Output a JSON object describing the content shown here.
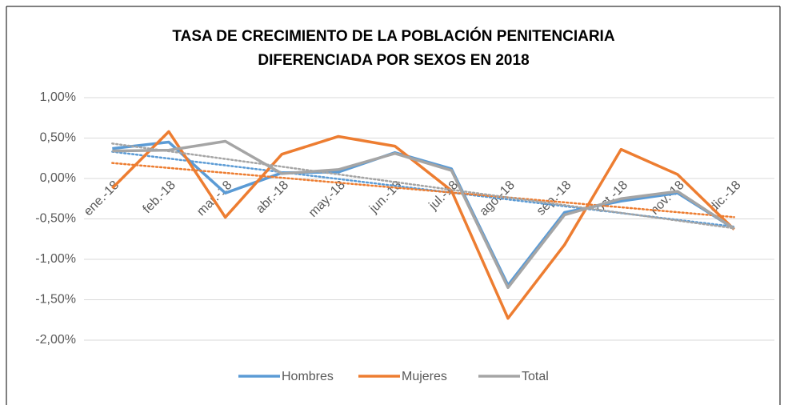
{
  "chart_data": {
    "type": "line",
    "title": [
      "TASA DE CRECIMIENTO DE LA POBLACIÓN PENITENCIARIA",
      "DIFERENCIADA POR SEXOS EN 2018"
    ],
    "categories": [
      "ene.-18",
      "feb.-18",
      "mar.-18",
      "abr.-18",
      "may.-18",
      "jun.-18",
      "jul.-18",
      "ago.-18",
      "sep.-18",
      "oct.-18",
      "nov.-18",
      "dic.-18"
    ],
    "series": [
      {
        "name": "Hombres",
        "color": "#5b9bd5",
        "values": [
          0.37,
          0.45,
          -0.18,
          0.07,
          0.08,
          0.32,
          0.12,
          -1.32,
          -0.42,
          -0.28,
          -0.18,
          -0.62
        ]
      },
      {
        "name": "Mujeres",
        "color": "#ed7d31",
        "values": [
          -0.12,
          0.58,
          -0.48,
          0.3,
          0.52,
          0.4,
          -0.15,
          -1.73,
          -0.82,
          0.36,
          0.05,
          -0.63
        ]
      },
      {
        "name": "Total",
        "color": "#a5a5a5",
        "values": [
          0.34,
          0.35,
          0.46,
          0.06,
          0.11,
          0.31,
          0.1,
          -1.35,
          -0.45,
          -0.25,
          -0.16,
          -0.62
        ]
      }
    ],
    "ylim": [
      -2,
      1
    ],
    "yticks": [
      {
        "value": 1,
        "label": "1,00%"
      },
      {
        "value": 0.5,
        "label": "0,50%"
      },
      {
        "value": 0,
        "label": "0,00%"
      },
      {
        "value": -0.5,
        "label": "-0,50%"
      },
      {
        "value": -1,
        "label": "-1,00%"
      },
      {
        "value": -1.5,
        "label": "-1,50%"
      },
      {
        "value": -2,
        "label": "-2,00%"
      }
    ],
    "grid": true,
    "trendline": "linear",
    "legend": "bottom"
  }
}
